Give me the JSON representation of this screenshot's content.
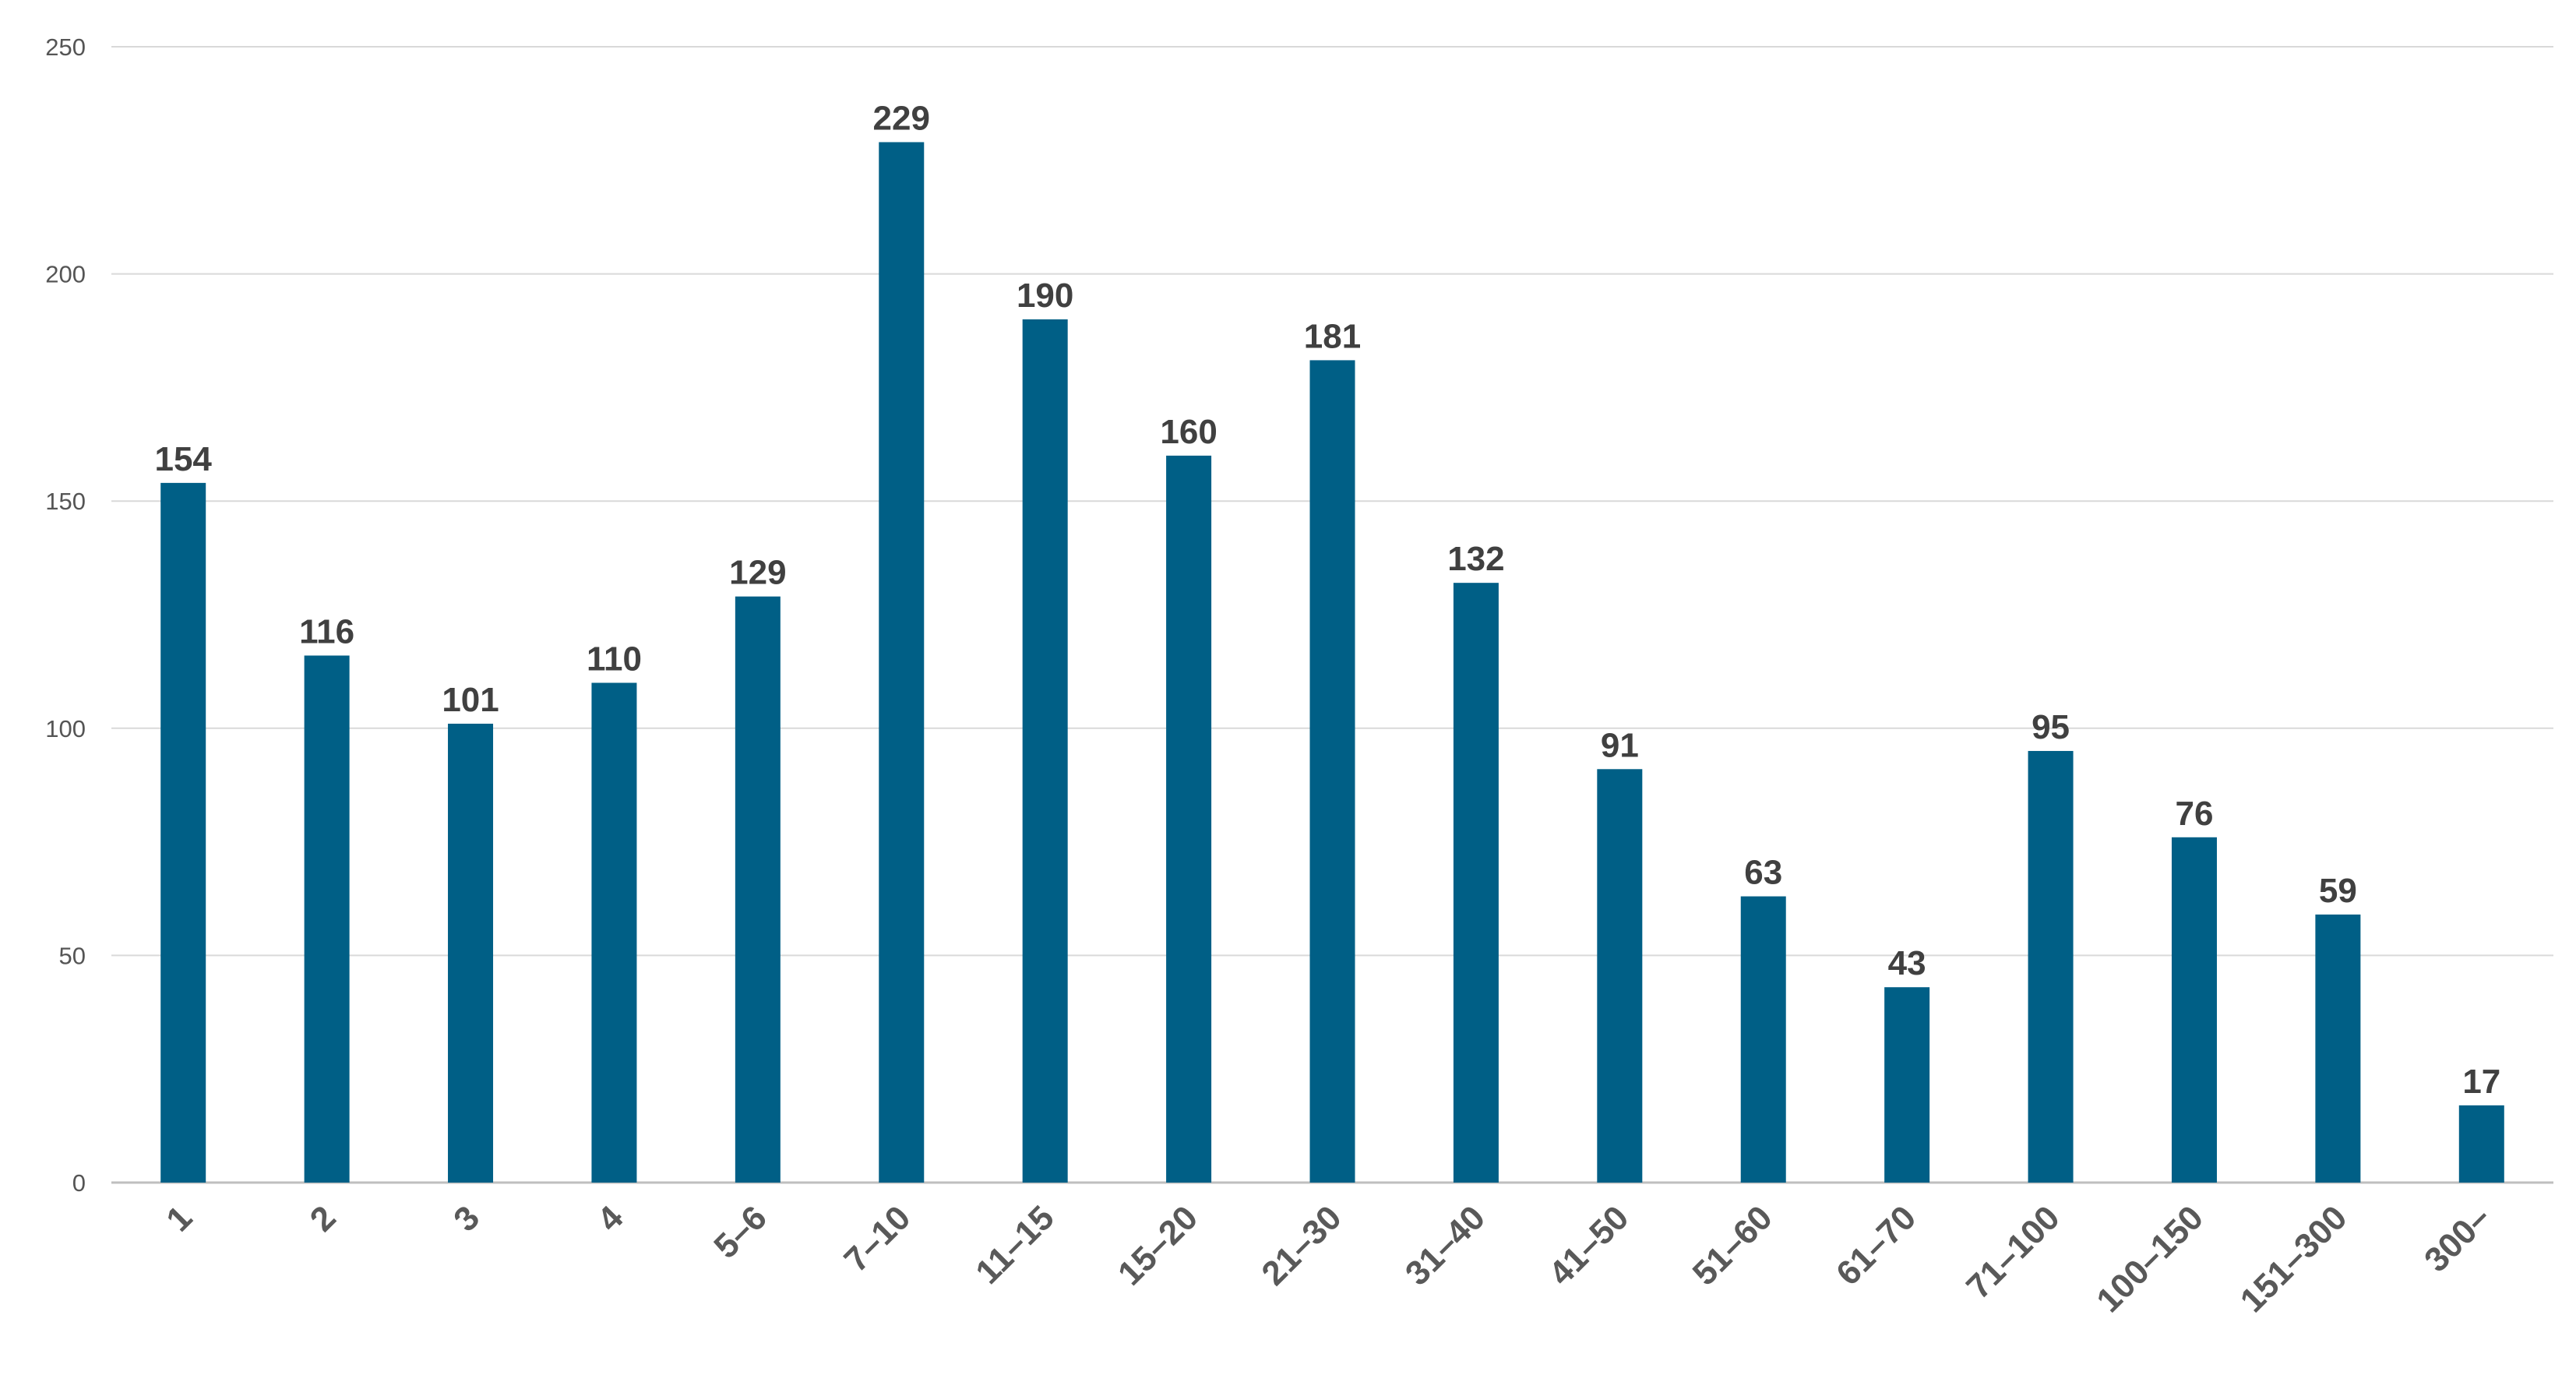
{
  "chart_data": {
    "type": "bar",
    "categories": [
      "1",
      "2",
      "3",
      "4",
      "5–6",
      "7–10",
      "11–15",
      "15–20",
      "21–30",
      "31–40",
      "41–50",
      "51–60",
      "61–70",
      "71–100",
      "100–150",
      "151–300",
      "300–"
    ],
    "values": [
      154,
      116,
      101,
      110,
      129,
      229,
      190,
      160,
      181,
      132,
      91,
      63,
      43,
      95,
      76,
      59,
      17
    ],
    "title": "",
    "xlabel": "",
    "ylabel": "",
    "ylim": [
      0,
      250
    ],
    "yticks": [
      0,
      50,
      100,
      150,
      200,
      250
    ],
    "grid": true,
    "legend": "none",
    "data_labels": true,
    "colors": {
      "bar": "#005F86",
      "grid": "#D9D9D9",
      "axis": "#BFBFBF"
    }
  }
}
